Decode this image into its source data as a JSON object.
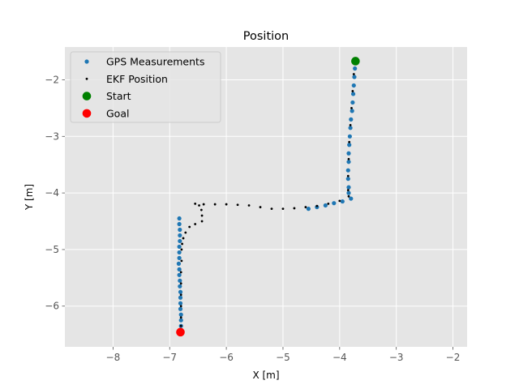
{
  "chart_data": {
    "type": "scatter",
    "title": "Position",
    "xlabel": "X [m]",
    "ylabel": "Y [m]",
    "xlim": [
      -8.85,
      -1.75
    ],
    "ylim": [
      -6.72,
      -1.42
    ],
    "xticks": [
      -8,
      -7,
      -6,
      -5,
      -4,
      -3,
      -2
    ],
    "yticks": [
      -2,
      -3,
      -4,
      -5,
      -6
    ],
    "grid": true,
    "legend_position": "top-left",
    "background": "#e5e5e5",
    "series": [
      {
        "name": "GPS Measurements",
        "color": "#1f77b4",
        "marker": "dot",
        "points": [
          [
            -3.72,
            -1.68
          ],
          [
            -3.73,
            -1.8
          ],
          [
            -3.74,
            -1.95
          ],
          [
            -3.75,
            -2.1
          ],
          [
            -3.76,
            -2.25
          ],
          [
            -3.77,
            -2.4
          ],
          [
            -3.78,
            -2.55
          ],
          [
            -3.8,
            -2.7
          ],
          [
            -3.81,
            -2.85
          ],
          [
            -3.82,
            -3.0
          ],
          [
            -3.83,
            -3.15
          ],
          [
            -3.84,
            -3.3
          ],
          [
            -3.84,
            -3.45
          ],
          [
            -3.85,
            -3.6
          ],
          [
            -3.85,
            -3.75
          ],
          [
            -3.84,
            -3.9
          ],
          [
            -3.84,
            -4.0
          ],
          [
            -3.8,
            -4.1
          ],
          [
            -3.95,
            -4.15
          ],
          [
            -4.1,
            -4.18
          ],
          [
            -4.25,
            -4.22
          ],
          [
            -4.4,
            -4.25
          ],
          [
            -4.55,
            -4.28
          ],
          [
            -6.83,
            -4.45
          ],
          [
            -6.83,
            -4.55
          ],
          [
            -6.82,
            -4.65
          ],
          [
            -6.82,
            -4.75
          ],
          [
            -6.82,
            -4.85
          ],
          [
            -6.83,
            -4.95
          ],
          [
            -6.83,
            -5.05
          ],
          [
            -6.83,
            -5.15
          ],
          [
            -6.84,
            -5.25
          ],
          [
            -6.83,
            -5.35
          ],
          [
            -6.83,
            -5.45
          ],
          [
            -6.82,
            -5.55
          ],
          [
            -6.82,
            -5.65
          ],
          [
            -6.81,
            -5.75
          ],
          [
            -6.81,
            -5.85
          ],
          [
            -6.81,
            -5.95
          ],
          [
            -6.81,
            -6.05
          ],
          [
            -6.8,
            -6.15
          ],
          [
            -6.8,
            -6.25
          ],
          [
            -6.8,
            -6.35
          ]
        ]
      },
      {
        "name": "EKF Position",
        "color": "#000000",
        "marker": "small-dot",
        "points": [
          [
            -3.73,
            -1.68
          ],
          [
            -3.75,
            -1.9
          ],
          [
            -3.77,
            -2.2
          ],
          [
            -3.79,
            -2.5
          ],
          [
            -3.81,
            -2.8
          ],
          [
            -3.83,
            -3.1
          ],
          [
            -3.84,
            -3.4
          ],
          [
            -3.85,
            -3.7
          ],
          [
            -3.85,
            -3.95
          ],
          [
            -3.84,
            -4.06
          ],
          [
            -4.0,
            -4.14
          ],
          [
            -4.2,
            -4.19
          ],
          [
            -4.4,
            -4.23
          ],
          [
            -4.6,
            -4.25
          ],
          [
            -4.8,
            -4.27
          ],
          [
            -5.0,
            -4.28
          ],
          [
            -5.2,
            -4.28
          ],
          [
            -5.4,
            -4.25
          ],
          [
            -5.6,
            -4.22
          ],
          [
            -5.8,
            -4.21
          ],
          [
            -6.0,
            -4.2
          ],
          [
            -6.2,
            -4.2
          ],
          [
            -6.4,
            -4.2
          ],
          [
            -6.55,
            -4.19
          ],
          [
            -6.48,
            -4.22
          ],
          [
            -6.44,
            -4.3
          ],
          [
            -6.43,
            -4.4
          ],
          [
            -6.43,
            -4.5
          ],
          [
            -6.55,
            -4.55
          ],
          [
            -6.65,
            -4.6
          ],
          [
            -6.72,
            -4.7
          ],
          [
            -6.76,
            -4.8
          ],
          [
            -6.78,
            -4.9
          ],
          [
            -6.79,
            -5.0
          ],
          [
            -6.79,
            -5.2
          ],
          [
            -6.8,
            -5.4
          ],
          [
            -6.8,
            -5.6
          ],
          [
            -6.8,
            -5.8
          ],
          [
            -6.8,
            -6.0
          ],
          [
            -6.8,
            -6.2
          ],
          [
            -6.8,
            -6.35
          ],
          [
            -6.81,
            -6.45
          ]
        ]
      },
      {
        "name": "Start",
        "color": "#008000",
        "marker": "large-dot",
        "points": [
          [
            -3.72,
            -1.67
          ]
        ]
      },
      {
        "name": "Goal",
        "color": "#ff0000",
        "marker": "large-dot",
        "points": [
          [
            -6.81,
            -6.46
          ]
        ]
      }
    ]
  }
}
